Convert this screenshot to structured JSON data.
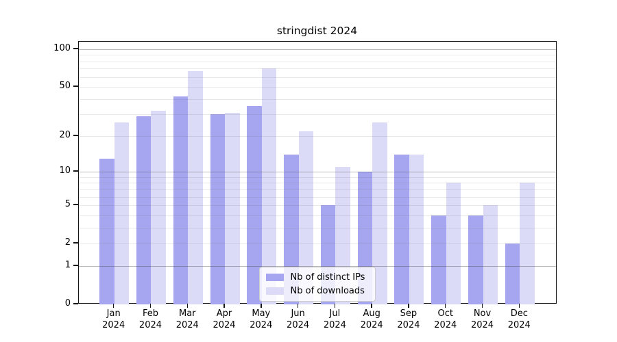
{
  "chart_data": {
    "type": "bar",
    "title": "stringdist 2024",
    "categories": [
      "Jan 2024",
      "Feb 2024",
      "Mar 2024",
      "Apr 2024",
      "May 2024",
      "Jun 2024",
      "Jul 2024",
      "Aug 2024",
      "Sep 2024",
      "Oct 2024",
      "Nov 2024",
      "Dec 2024"
    ],
    "series": [
      {
        "name": "Nb of distinct IPs",
        "color": "#a5a5f0",
        "values": [
          13,
          29,
          42,
          30,
          35,
          14,
          5,
          10,
          14,
          4,
          4,
          2
        ]
      },
      {
        "name": "Nb of downloads",
        "color": "#dbdbf8",
        "values": [
          26,
          32,
          67,
          31,
          70,
          22,
          11,
          26,
          14,
          8,
          5,
          8
        ]
      }
    ],
    "y_axis": {
      "scale": "log1p",
      "tick_values": [
        0,
        1,
        2,
        5,
        10,
        20,
        50,
        100
      ],
      "range": [
        0,
        100
      ]
    },
    "grid": {
      "major_values": [
        1,
        10,
        100
      ],
      "minor_values": [
        2,
        3,
        4,
        5,
        6,
        7,
        8,
        9,
        20,
        30,
        40,
        50,
        60,
        70,
        80,
        90
      ]
    },
    "legend": {
      "position": "bottom-center",
      "entries": [
        "Nb of distinct IPs",
        "Nb of downloads"
      ]
    }
  }
}
